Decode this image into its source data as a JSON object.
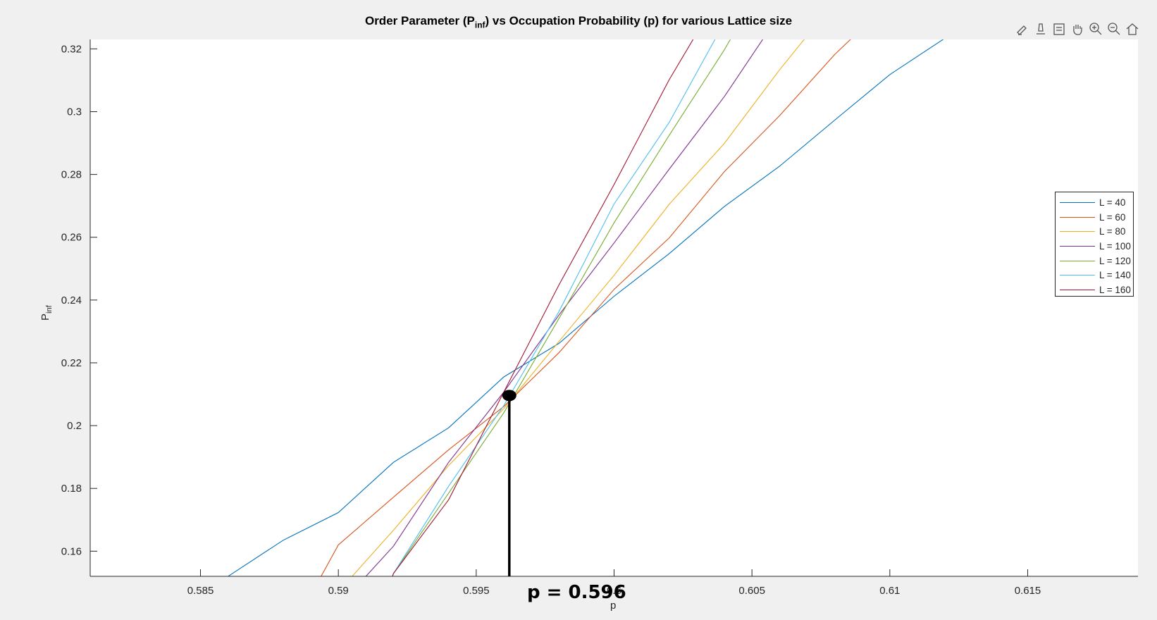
{
  "chart_data": {
    "type": "line",
    "title_main": "Order Parameter (P",
    "title_sub": "inf",
    "title_rest": ") vs Occupation Probability (p) for various Lattice size",
    "xlabel": "p",
    "ylabel_main": "P",
    "ylabel_sub": "inf",
    "xlim": [
      0.581,
      0.619
    ],
    "ylim": [
      0.152,
      0.323
    ],
    "xticks": [
      "0.585",
      "0.59",
      "0.595",
      "0.6",
      "0.605",
      "0.61",
      "0.615"
    ],
    "xtick_values": [
      0.585,
      0.59,
      0.595,
      0.6,
      0.605,
      0.61,
      0.615
    ],
    "yticks": [
      "0.16",
      "0.18",
      "0.2",
      "0.22",
      "0.24",
      "0.26",
      "0.28",
      "0.3",
      "0.32"
    ],
    "ytick_values": [
      0.16,
      0.18,
      0.2,
      0.22,
      0.24,
      0.26,
      0.28,
      0.3,
      0.32
    ],
    "legend_position": "right",
    "series": [
      {
        "name": "L = 40",
        "color": "#0072BD",
        "points": [
          [
            0.584,
            0.135
          ],
          [
            0.586,
            0.152
          ],
          [
            0.588,
            0.1635
          ],
          [
            0.59,
            0.1723
          ],
          [
            0.592,
            0.1883
          ],
          [
            0.594,
            0.1993
          ],
          [
            0.596,
            0.2155
          ],
          [
            0.598,
            0.2262
          ],
          [
            0.6,
            0.2412
          ],
          [
            0.602,
            0.2548
          ],
          [
            0.604,
            0.2698
          ],
          [
            0.606,
            0.2826
          ],
          [
            0.608,
            0.2973
          ],
          [
            0.61,
            0.3118
          ],
          [
            0.612,
            0.3234
          ],
          [
            0.614,
            0.333
          ]
        ]
      },
      {
        "name": "L = 60",
        "color": "#D95319",
        "points": [
          [
            0.588,
            0.13
          ],
          [
            0.59,
            0.162
          ],
          [
            0.592,
            0.1772
          ],
          [
            0.594,
            0.1923
          ],
          [
            0.596,
            0.2061
          ],
          [
            0.598,
            0.2232
          ],
          [
            0.6,
            0.2434
          ],
          [
            0.602,
            0.2598
          ],
          [
            0.604,
            0.2809
          ],
          [
            0.606,
            0.2987
          ],
          [
            0.608,
            0.3182
          ],
          [
            0.61,
            0.335
          ]
        ]
      },
      {
        "name": "L = 80",
        "color": "#EDB120",
        "points": [
          [
            0.589,
            0.14
          ],
          [
            0.5905,
            0.152
          ],
          [
            0.592,
            0.1667
          ],
          [
            0.594,
            0.1873
          ],
          [
            0.596,
            0.2054
          ],
          [
            0.598,
            0.2268
          ],
          [
            0.6,
            0.2479
          ],
          [
            0.602,
            0.2705
          ],
          [
            0.604,
            0.2899
          ],
          [
            0.606,
            0.3133
          ],
          [
            0.608,
            0.335
          ]
        ]
      },
      {
        "name": "L = 100",
        "color": "#7E2F8E",
        "points": [
          [
            0.59,
            0.14
          ],
          [
            0.591,
            0.152
          ],
          [
            0.592,
            0.1616
          ],
          [
            0.594,
            0.1883
          ],
          [
            0.596,
            0.2107
          ],
          [
            0.598,
            0.2352
          ],
          [
            0.6,
            0.2582
          ],
          [
            0.602,
            0.2817
          ],
          [
            0.604,
            0.3048
          ],
          [
            0.606,
            0.331
          ]
        ]
      },
      {
        "name": "L = 120",
        "color": "#77AC30",
        "points": [
          [
            0.5915,
            0.14
          ],
          [
            0.592,
            0.1529
          ],
          [
            0.594,
            0.1785
          ],
          [
            0.596,
            0.2041
          ],
          [
            0.598,
            0.2341
          ],
          [
            0.6,
            0.2646
          ],
          [
            0.602,
            0.2925
          ],
          [
            0.604,
            0.3197
          ],
          [
            0.605,
            0.335
          ]
        ]
      },
      {
        "name": "L = 140",
        "color": "#4DBEEE",
        "points": [
          [
            0.5915,
            0.14
          ],
          [
            0.592,
            0.1529
          ],
          [
            0.594,
            0.1807
          ],
          [
            0.596,
            0.2064
          ],
          [
            0.598,
            0.2363
          ],
          [
            0.6,
            0.2706
          ],
          [
            0.602,
            0.2966
          ],
          [
            0.604,
            0.3284
          ],
          [
            0.6045,
            0.335
          ]
        ]
      },
      {
        "name": "L = 160",
        "color": "#A2142F",
        "points": [
          [
            0.5915,
            0.14
          ],
          [
            0.592,
            0.1529
          ],
          [
            0.594,
            0.1764
          ],
          [
            0.596,
            0.2107
          ],
          [
            0.598,
            0.2448
          ],
          [
            0.6,
            0.2768
          ],
          [
            0.602,
            0.3102
          ],
          [
            0.603,
            0.325
          ]
        ]
      }
    ],
    "annotation": {
      "label": "p = 0.596",
      "x": 0.5962,
      "y": 0.2096
    }
  }
}
